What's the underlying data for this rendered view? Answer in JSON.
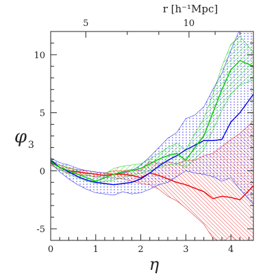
{
  "chart_data": {
    "type": "line",
    "xlabel": "η",
    "ylabel_symbol": "φ",
    "ylabel_sub": "3",
    "top_axis_label": "r [h⁻¹Mpc]",
    "xlim": [
      0,
      4.5
    ],
    "ylim": [
      -6,
      12
    ],
    "x_ticks": [
      0,
      1,
      2,
      3,
      4
    ],
    "y_ticks": [
      -5,
      0,
      5,
      10
    ],
    "top_ticks": [
      {
        "label": "5",
        "eta": 0.78
      },
      {
        "label": "10",
        "eta": 3.07
      }
    ],
    "grid": false,
    "legend": "none",
    "series": [
      {
        "color": "#0000ee",
        "x": [
          0,
          0.1,
          0.2,
          0.4,
          0.6,
          0.8,
          1.0,
          1.2,
          1.4,
          1.6,
          1.8,
          2.0,
          2.2,
          2.4,
          2.6,
          2.8,
          3.0,
          3.2,
          3.4,
          3.6,
          3.8,
          4.0,
          4.2,
          4.5
        ],
        "y": [
          0.9,
          0.6,
          0.3,
          -0.1,
          -0.5,
          -0.8,
          -1.0,
          -1.1,
          -1.2,
          -1.1,
          -1.0,
          -0.7,
          -0.2,
          0.4,
          0.9,
          1.3,
          1.8,
          2.2,
          2.6,
          2.6,
          2.7,
          4.2,
          5.0,
          6.6
        ],
        "lower": [
          0.7,
          0.3,
          -0.1,
          -0.7,
          -1.2,
          -1.6,
          -1.9,
          -2.0,
          -2.1,
          -1.8,
          -2.0,
          -1.9,
          -1.6,
          -1.2,
          -1.0,
          -0.5,
          0.0,
          -0.2,
          -0.3,
          -0.5,
          -0.9,
          -0.6,
          -1.6,
          -2.9
        ],
        "upper": [
          1.1,
          0.9,
          0.7,
          0.5,
          0.2,
          0.0,
          -0.1,
          -0.2,
          -0.3,
          -0.2,
          0.0,
          0.5,
          1.2,
          2.0,
          2.8,
          3.3,
          4.5,
          4.8,
          5.5,
          7.0,
          8.4,
          10.4,
          12.2,
          12.5
        ]
      },
      {
        "color": "#00cc00",
        "x": [
          0,
          0.1,
          0.2,
          0.4,
          0.6,
          0.8,
          1.0,
          1.2,
          1.4,
          1.6,
          1.8,
          2.0,
          2.2,
          2.4,
          2.6,
          2.8,
          3.0,
          3.2,
          3.4,
          3.6,
          3.8,
          4.0,
          4.2,
          4.5
        ],
        "y": [
          0.8,
          0.5,
          0.3,
          0.0,
          -0.3,
          -0.6,
          -0.9,
          -0.6,
          -0.3,
          -0.1,
          0.0,
          0.2,
          0.6,
          1.0,
          1.3,
          1.5,
          0.9,
          2.0,
          3.0,
          5.0,
          7.0,
          8.7,
          9.5,
          9.0
        ],
        "lower": [
          0.6,
          0.3,
          0.1,
          -0.3,
          -0.6,
          -0.9,
          -1.1,
          -0.9,
          -0.8,
          -0.6,
          -0.4,
          -0.2,
          0.0,
          0.3,
          0.5,
          0.6,
          0.3,
          1.0,
          1.8,
          3.5,
          5.2,
          6.6,
          7.4,
          7.8
        ],
        "upper": [
          1.0,
          0.7,
          0.5,
          0.3,
          0.0,
          -0.3,
          -0.6,
          -0.3,
          0.2,
          0.4,
          0.5,
          0.6,
          1.0,
          1.5,
          2.0,
          2.4,
          1.8,
          3.2,
          4.5,
          6.6,
          9.0,
          10.9,
          11.6,
          10.2
        ]
      },
      {
        "color": "#ee0000",
        "x": [
          0,
          0.1,
          0.2,
          0.4,
          0.6,
          0.8,
          1.0,
          1.2,
          1.4,
          1.6,
          1.8,
          2.0,
          2.2,
          2.4,
          2.6,
          2.8,
          3.0,
          3.2,
          3.4,
          3.6,
          3.8,
          4.0,
          4.2,
          4.5
        ],
        "y": [
          0.7,
          0.5,
          0.3,
          0.0,
          -0.1,
          -0.2,
          -0.3,
          -0.4,
          -0.3,
          -0.3,
          -0.4,
          -0.6,
          -0.2,
          -0.4,
          -0.7,
          -1.0,
          -1.2,
          -1.5,
          -1.8,
          -2.4,
          -2.2,
          -2.3,
          -2.5,
          -1.3
        ],
        "lower": [
          0.5,
          0.3,
          0.1,
          -0.2,
          -0.3,
          -0.4,
          -0.5,
          -0.6,
          -0.6,
          -0.7,
          -0.9,
          -1.1,
          -1.2,
          -1.6,
          -2.2,
          -2.6,
          -3.2,
          -3.9,
          -4.6,
          -5.8,
          -6.2,
          -5.6,
          -6.3,
          -6.2
        ],
        "upper": [
          0.9,
          0.7,
          0.5,
          0.2,
          0.1,
          0.0,
          -0.1,
          -0.2,
          0.0,
          0.0,
          0.1,
          0.0,
          0.8,
          0.6,
          0.8,
          0.6,
          0.9,
          0.9,
          1.3,
          1.5,
          2.1,
          2.7,
          3.2,
          4.3
        ]
      }
    ]
  }
}
